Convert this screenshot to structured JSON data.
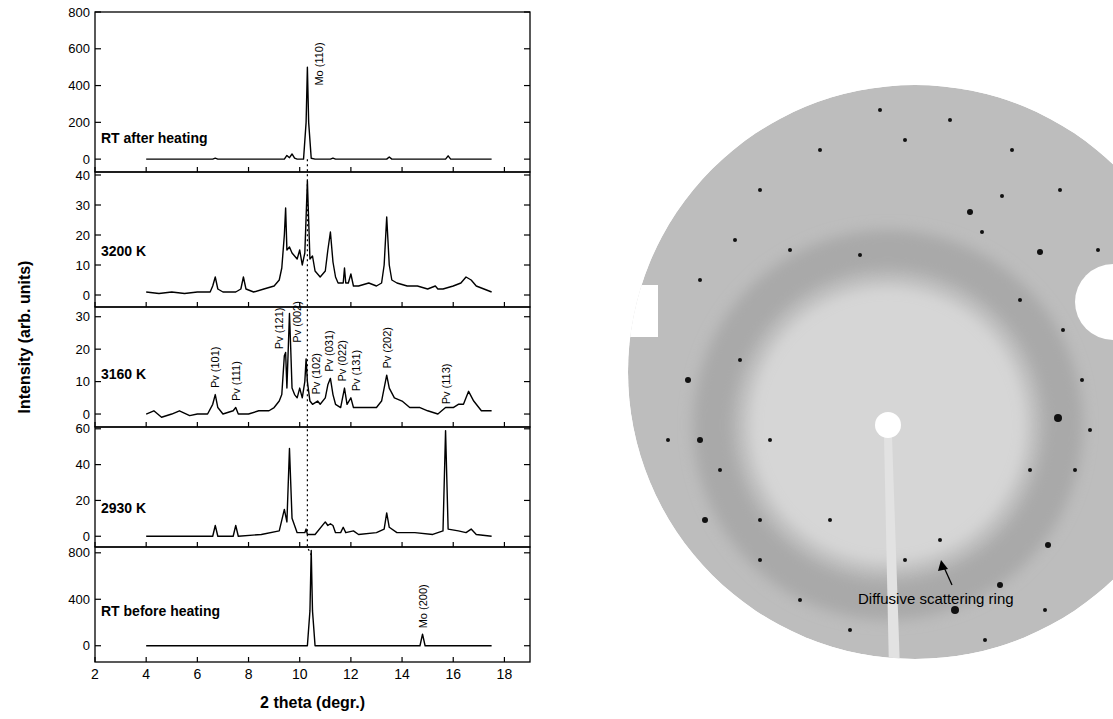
{
  "chart_data": [
    {
      "type": "line",
      "title": "RT after heating",
      "tick_labels": "y",
      "xlim": [
        2,
        19
      ],
      "xticks": [
        2,
        4,
        6,
        8,
        10,
        12,
        14,
        16,
        18
      ],
      "ylim": [
        -70,
        800
      ],
      "yticks": [
        0,
        200,
        400,
        600,
        800
      ],
      "x": [
        4,
        6.6,
        6.7,
        6.8,
        9.4,
        9.5,
        9.6,
        9.7,
        9.8,
        9.9,
        10.15,
        10.25,
        10.3,
        10.35,
        10.45,
        10.6,
        11.2,
        11.3,
        11.4,
        13.4,
        13.5,
        13.6,
        15.7,
        15.8,
        15.9,
        17.5
      ],
      "series": [
        {
          "color": "#000000",
          "line_style": "solid",
          "values": [
            0,
            0,
            5,
            0,
            0,
            20,
            8,
            28,
            5,
            0,
            0,
            200,
            500,
            200,
            5,
            0,
            0,
            6,
            0,
            0,
            12,
            0,
            0,
            18,
            0,
            0
          ]
        }
      ],
      "annotations": [
        {
          "text": "Mo (110)",
          "x": 10.75,
          "y": 400
        }
      ]
    },
    {
      "type": "line",
      "title": "3200 K",
      "tick_labels": "y",
      "xlim": [
        2,
        19
      ],
      "xticks": [
        2,
        4,
        6,
        8,
        10,
        12,
        14,
        16,
        18
      ],
      "ylim": [
        -4,
        41
      ],
      "yticks": [
        0,
        10,
        20,
        30,
        40
      ],
      "x": [
        4,
        4.5,
        5,
        5.5,
        6,
        6.5,
        6.6,
        6.7,
        6.8,
        7,
        7.5,
        7.7,
        7.8,
        7.9,
        8.2,
        8.6,
        9.0,
        9.2,
        9.3,
        9.4,
        9.45,
        9.5,
        9.6,
        9.7,
        9.8,
        9.9,
        10.0,
        10.1,
        10.2,
        10.3,
        10.4,
        10.5,
        10.6,
        10.8,
        11.0,
        11.1,
        11.2,
        11.3,
        11.4,
        11.5,
        11.7,
        11.75,
        11.8,
        11.9,
        12.0,
        12.1,
        12.3,
        12.7,
        13.0,
        13.2,
        13.3,
        13.4,
        13.5,
        13.6,
        13.8,
        14.2,
        14.6,
        15.0,
        15.3,
        15.4,
        15.6,
        16.0,
        16.3,
        16.5,
        16.7,
        16.9,
        17.2,
        17.5
      ],
      "series": [
        {
          "color": "#000000",
          "line_style": "solid",
          "values": [
            1,
            0.5,
            1,
            0.5,
            1,
            1,
            3,
            6,
            2,
            1,
            1,
            2,
            6,
            2,
            1,
            2,
            3,
            5,
            9,
            20,
            29,
            15,
            16,
            14,
            13,
            12,
            15,
            10,
            14,
            38,
            12,
            13,
            8,
            6,
            8,
            15,
            21,
            11,
            6,
            4,
            4,
            9,
            4,
            4,
            7,
            3,
            3,
            4,
            3,
            4,
            10,
            26,
            10,
            5,
            4,
            3,
            3,
            2,
            3,
            2,
            2,
            3,
            4,
            6,
            5,
            3,
            2,
            1
          ]
        }
      ]
    },
    {
      "type": "line",
      "title": "3160 K",
      "tick_labels": "y",
      "ylabel": "Intensity (arb. units)",
      "xlim": [
        2,
        19
      ],
      "xticks": [
        2,
        4,
        6,
        8,
        10,
        12,
        14,
        16,
        18
      ],
      "ylim": [
        -4,
        33
      ],
      "yticks": [
        0,
        10,
        20,
        30
      ],
      "x": [
        4,
        4.3,
        4.6,
        5,
        5.3,
        5.7,
        6,
        6.4,
        6.6,
        6.7,
        6.8,
        7.0,
        7.4,
        7.5,
        7.6,
        8,
        8.4,
        8.8,
        9.0,
        9.2,
        9.3,
        9.4,
        9.45,
        9.5,
        9.6,
        9.65,
        9.7,
        9.8,
        9.9,
        10.0,
        10.1,
        10.2,
        10.25,
        10.3,
        10.4,
        10.5,
        10.7,
        10.8,
        11.0,
        11.1,
        11.2,
        11.3,
        11.4,
        11.6,
        11.75,
        11.85,
        12.0,
        12.1,
        12.3,
        12.7,
        13.0,
        13.2,
        13.4,
        13.5,
        13.7,
        14.0,
        14.3,
        14.7,
        15.0,
        15.4,
        15.7,
        16.0,
        16.2,
        16.4,
        16.6,
        16.8,
        17.1,
        17.5
      ],
      "series": [
        {
          "color": "#000000",
          "line_style": "solid",
          "values": [
            0,
            1,
            -1,
            0,
            1,
            -0.5,
            0,
            0,
            3,
            6,
            2,
            0,
            1,
            2,
            0,
            0,
            1,
            1,
            2,
            4,
            6,
            18,
            19,
            8,
            31,
            20,
            8,
            6,
            5,
            8,
            5,
            10,
            17,
            10,
            4,
            3,
            4,
            3,
            5,
            9,
            11,
            6,
            3,
            2,
            8,
            3,
            5,
            2,
            2,
            2,
            2,
            4,
            12,
            8,
            5,
            4,
            2,
            2,
            1,
            0,
            2,
            2,
            3,
            3,
            7,
            4,
            1,
            1
          ]
        }
      ],
      "annotations": [
        {
          "text": "Pv (101)",
          "x": 6.7,
          "y": 8
        },
        {
          "text": "Pv (111)",
          "x": 7.5,
          "y": 4
        },
        {
          "text": "Pv (121)",
          "x": 9.2,
          "y": 20
        },
        {
          "text": "Pv (002)",
          "x": 9.9,
          "y": 22
        },
        {
          "text": "Pv (102)",
          "x": 10.65,
          "y": 6
        },
        {
          "text": "Pv (031)",
          "x": 11.15,
          "y": 13
        },
        {
          "text": "Pv (022)",
          "x": 11.65,
          "y": 10
        },
        {
          "text": "Pv (131)",
          "x": 12.2,
          "y": 7
        },
        {
          "text": "Pv (202)",
          "x": 13.4,
          "y": 14
        },
        {
          "text": "Pv (113)",
          "x": 15.7,
          "y": 3
        }
      ]
    },
    {
      "type": "line",
      "title": "2930 K",
      "tick_labels": "y",
      "xlim": [
        2,
        19
      ],
      "xticks": [
        2,
        4,
        6,
        8,
        10,
        12,
        14,
        16,
        18
      ],
      "ylim": [
        -6,
        61
      ],
      "yticks": [
        0,
        20,
        40,
        60
      ],
      "x": [
        4,
        5,
        6,
        6.6,
        6.7,
        6.8,
        7.4,
        7.5,
        7.6,
        8.5,
        9.2,
        9.4,
        9.5,
        9.6,
        9.7,
        9.9,
        10.2,
        10.25,
        10.3,
        10.6,
        11.0,
        11.1,
        11.2,
        11.3,
        11.4,
        11.6,
        11.7,
        11.8,
        12.1,
        12.3,
        13.0,
        13.3,
        13.4,
        13.5,
        13.8,
        14.5,
        15.2,
        15.6,
        15.7,
        15.8,
        16.2,
        16.5,
        16.7,
        16.9,
        17.5
      ],
      "series": [
        {
          "color": "#000000",
          "line_style": "solid",
          "values": [
            0,
            0,
            0,
            0,
            6,
            0,
            0,
            6,
            0,
            1,
            3,
            15,
            8,
            49,
            10,
            2,
            2,
            4,
            1,
            1,
            8,
            6,
            7,
            6,
            2,
            2,
            5,
            2,
            3,
            1,
            2,
            4,
            13,
            5,
            2,
            2,
            1,
            3,
            59,
            4,
            3,
            2,
            4,
            1,
            0
          ]
        }
      ]
    },
    {
      "type": "line",
      "title": "RT before heating",
      "xlabel": "2 theta (degr.)",
      "xlim": [
        2,
        19
      ],
      "xticks": [
        2,
        4,
        6,
        8,
        10,
        12,
        14,
        16,
        18
      ],
      "ylim": [
        -140,
        850
      ],
      "yticks": [
        0,
        400,
        800
      ],
      "x": [
        4,
        10.3,
        10.4,
        10.45,
        10.5,
        10.6,
        14.7,
        14.8,
        14.9,
        17.5
      ],
      "series": [
        {
          "color": "#000000",
          "line_style": "solid",
          "values": [
            0,
            0,
            300,
            820,
            300,
            0,
            0,
            100,
            0,
            0
          ]
        }
      ],
      "annotations": [
        {
          "text": "Mo (200)",
          "x": 14.8,
          "y": 150
        }
      ]
    }
  ],
  "guide_line": {
    "x": [
      10.3,
      10.45
    ],
    "line_style": "dotted"
  },
  "image": {
    "annotation": "Diffusive scattering ring"
  }
}
